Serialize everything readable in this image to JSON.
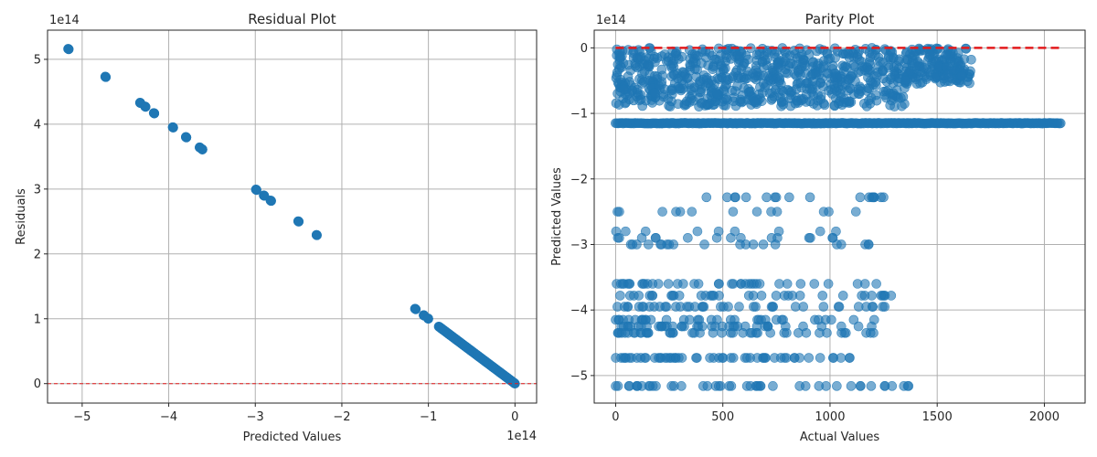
{
  "chart_data": [
    {
      "type": "scatter",
      "title": "Residual Plot",
      "xlabel": "Predicted Values",
      "ylabel": "Residuals",
      "x_offset_label": "1e14",
      "y_offset_label": "1e14",
      "xlim": [
        -5.4,
        0.25
      ],
      "ylim": [
        -0.3,
        5.45
      ],
      "xticks": [
        -5,
        -4,
        -3,
        -2,
        -1,
        0
      ],
      "yticks": [
        0,
        1,
        2,
        3,
        4,
        5
      ],
      "xtick_labels": [
        "−5",
        "−4",
        "−3",
        "−2",
        "−1",
        "0"
      ],
      "ytick_labels": [
        "0",
        "1",
        "2",
        "3",
        "4",
        "5"
      ],
      "grid": true,
      "point_color": "#1f77b4",
      "reference_line": {
        "y": 0,
        "color": "#e31a1c",
        "style": "dashed"
      },
      "clusters": [
        {
          "x": -5.16,
          "y": 5.16
        },
        {
          "x": -4.73,
          "y": 4.73
        },
        {
          "x": -4.33,
          "y": 4.33
        },
        {
          "x": -4.27,
          "y": 4.27
        },
        {
          "x": -4.17,
          "y": 4.17
        },
        {
          "x": -3.95,
          "y": 3.95
        },
        {
          "x": -3.8,
          "y": 3.8
        },
        {
          "x": -3.64,
          "y": 3.64
        },
        {
          "x": -3.61,
          "y": 3.61
        },
        {
          "x": -2.99,
          "y": 2.99
        },
        {
          "x": -2.9,
          "y": 2.9
        },
        {
          "x": -2.82,
          "y": 2.82
        },
        {
          "x": -2.5,
          "y": 2.5
        },
        {
          "x": -2.29,
          "y": 2.29
        },
        {
          "x": -1.15,
          "y": 1.15
        },
        {
          "x": -1.05,
          "y": 1.05
        },
        {
          "x": -1.0,
          "y": 1.0
        }
      ],
      "continuous_segment": {
        "x_from": -0.88,
        "x_to": 0.0
      }
    },
    {
      "type": "scatter",
      "title": "Parity Plot",
      "xlabel": "Actual Values",
      "ylabel": "Predicted Values",
      "y_offset_label": "1e14",
      "xlim": [
        -100,
        2190
      ],
      "ylim": [
        -5.42,
        0.27
      ],
      "xticks": [
        0,
        500,
        1000,
        1500,
        2000
      ],
      "yticks": [
        0,
        -1,
        -2,
        -3,
        -4,
        -5
      ],
      "xtick_labels": [
        "0",
        "500",
        "1000",
        "1500",
        "2000"
      ],
      "ytick_labels": [
        "0",
        "−1",
        "−2",
        "−3",
        "−4",
        "−5"
      ],
      "grid": true,
      "point_color": "#1f77b4",
      "point_opacity": 0.6,
      "reference_line": {
        "from": [
          0,
          0
        ],
        "to": [
          2080,
          0
        ],
        "color": "#e31a1c",
        "style": "dashed"
      },
      "bands": [
        {
          "y_from": -0.9,
          "y_to": 0.0,
          "x_max": 1660,
          "density": "high"
        },
        {
          "y": -1.15,
          "x_min": 0,
          "x_max": 2080,
          "density": "line"
        },
        {
          "y_from": -3.0,
          "y_to": -2.28,
          "x_max": 1250,
          "density": "sparse"
        },
        {
          "y_from": -4.35,
          "y_to": -3.6,
          "x_max": 1290,
          "density": "sparse"
        },
        {
          "y": -4.73,
          "x_max": 1150,
          "density": "sparse"
        },
        {
          "y": -5.16,
          "x_max": 1370,
          "density": "sparse"
        }
      ]
    }
  ]
}
